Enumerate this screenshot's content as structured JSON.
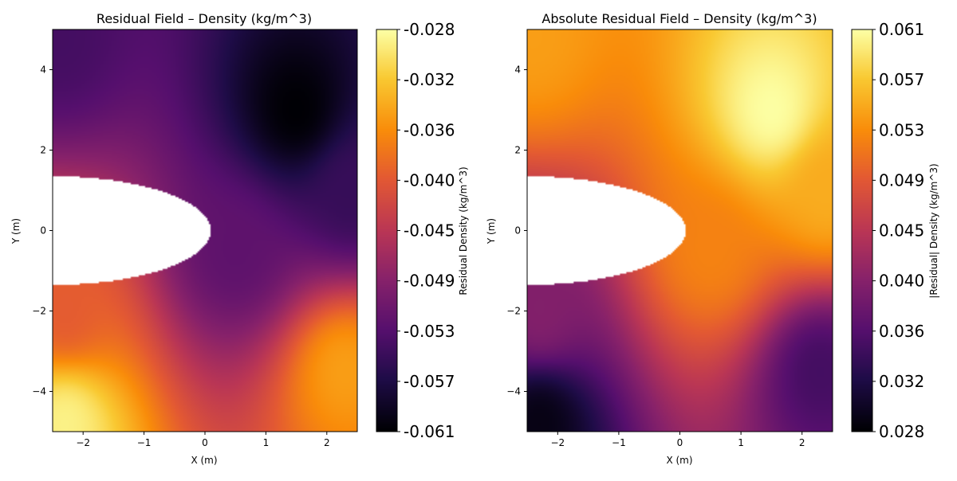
{
  "chart_data": [
    {
      "type": "heatmap",
      "title": "Residual Field – Density (kg/m^3)",
      "xlabel": "X (m)",
      "ylabel": "Y (m)",
      "xlim": [
        -2.5,
        2.5
      ],
      "ylim": [
        -5,
        5
      ],
      "x_ticks": [
        "−2",
        "−1",
        "0",
        "1",
        "2"
      ],
      "y_ticks": [
        "−4",
        "−2",
        "0",
        "2",
        "4"
      ],
      "colormap": "inferno",
      "colorbar": {
        "label": "Residual Density (kg/m^3)",
        "range": [
          -0.061,
          -0.028
        ],
        "tick_labels": [
          "-0.061",
          "-0.057",
          "-0.053",
          "-0.049",
          "-0.045",
          "-0.040",
          "-0.036",
          "-0.032",
          "-0.028"
        ]
      },
      "masked_region": {
        "shape": "ellipse",
        "center": [
          -2.5,
          0
        ],
        "semi_axis_x": 2.6,
        "semi_axis_y": 1.35
      },
      "field_samples": [
        {
          "x": -2.4,
          "y": 4.8,
          "value": -0.054
        },
        {
          "x": 1.5,
          "y": 3.0,
          "value": -0.061
        },
        {
          "x": 2.4,
          "y": 1.0,
          "value": -0.055
        },
        {
          "x": 0.5,
          "y": -0.5,
          "value": -0.052
        },
        {
          "x": -2.3,
          "y": -2.0,
          "value": -0.04
        },
        {
          "x": 2.3,
          "y": -3.5,
          "value": -0.035
        },
        {
          "x": -2.3,
          "y": -4.8,
          "value": -0.029
        }
      ]
    },
    {
      "type": "heatmap",
      "title": "Absolute Residual Field – Density (kg/m^3)",
      "xlabel": "X (m)",
      "ylabel": "Y (m)",
      "xlim": [
        -2.5,
        2.5
      ],
      "ylim": [
        -5,
        5
      ],
      "x_ticks": [
        "−2",
        "−1",
        "0",
        "1",
        "2"
      ],
      "y_ticks": [
        "−4",
        "−2",
        "0",
        "2",
        "4"
      ],
      "colormap": "inferno",
      "colorbar": {
        "label": "|Residual| Density (kg/m^3)",
        "range": [
          0.028,
          0.061
        ],
        "tick_labels": [
          "0.028",
          "0.032",
          "0.036",
          "0.040",
          "0.045",
          "0.049",
          "0.053",
          "0.057",
          "0.061"
        ]
      },
      "masked_region": {
        "shape": "ellipse",
        "center": [
          -2.5,
          0
        ],
        "semi_axis_x": 2.6,
        "semi_axis_y": 1.35
      },
      "field_samples": [
        {
          "x": -2.4,
          "y": 4.8,
          "value": 0.054
        },
        {
          "x": 1.5,
          "y": 3.0,
          "value": 0.061
        },
        {
          "x": 2.4,
          "y": 1.0,
          "value": 0.055
        },
        {
          "x": 0.5,
          "y": -0.5,
          "value": 0.052
        },
        {
          "x": -2.3,
          "y": -2.0,
          "value": 0.04
        },
        {
          "x": 2.3,
          "y": -3.5,
          "value": 0.035
        },
        {
          "x": -2.3,
          "y": -4.8,
          "value": 0.029
        }
      ]
    }
  ]
}
